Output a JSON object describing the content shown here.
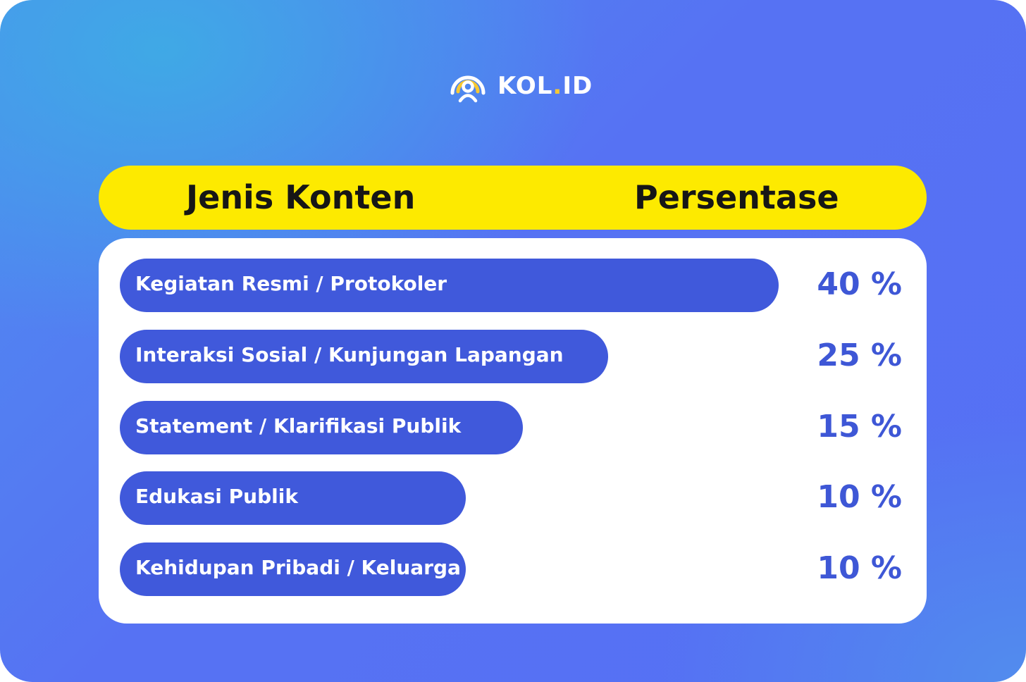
{
  "brand": {
    "name_main": "KOL",
    "name_dot": ".",
    "name_suffix": "ID",
    "logo_icon": "person-signal-icon",
    "accent_color": "#f7c832"
  },
  "colors": {
    "background": "#5672f3",
    "header_bar": "#fdea00",
    "bar": "#4059db",
    "percent_text": "#3e57d6"
  },
  "chart_data": {
    "type": "bar",
    "orientation": "horizontal",
    "column_headers": [
      "Jenis Konten",
      "Persentase"
    ],
    "categories": [
      "Kegiatan Resmi / Protokoler",
      "Interaksi Sosial / Kunjungan Lapangan",
      "Statement / Klarifikasi Publik",
      "Edukasi Publik",
      "Kehidupan Pribadi / Keluarga"
    ],
    "values": [
      40,
      25,
      15,
      10,
      10
    ],
    "value_labels": [
      "40 %",
      "25 %",
      "15 %",
      "10 %",
      "10 %"
    ]
  }
}
